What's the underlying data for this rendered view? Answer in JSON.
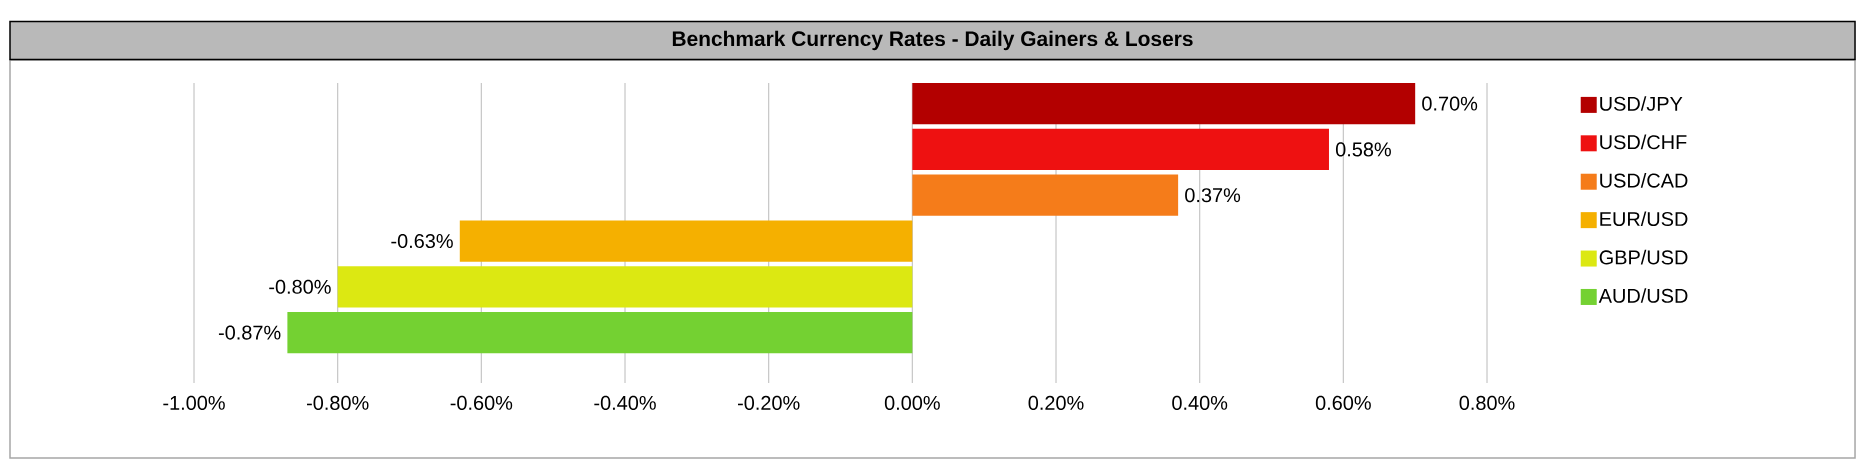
{
  "chart_data": {
    "type": "bar",
    "orientation": "horizontal",
    "title": "Benchmark Currency Rates - Daily Gainers & Losers",
    "categories": [
      null,
      null,
      null,
      null,
      null,
      null
    ],
    "series": [
      {
        "name": "USD/JPY",
        "color": "#b30000",
        "values": [
          0.7,
          null,
          null,
          null,
          null,
          null
        ],
        "value_labels": [
          "0.70%",
          null,
          null,
          null,
          null,
          null
        ]
      },
      {
        "name": "USD/CHF",
        "color": "#ee1111",
        "values": [
          null,
          0.58,
          null,
          null,
          null,
          null
        ],
        "value_labels": [
          null,
          "0.58%",
          null,
          null,
          null,
          null
        ]
      },
      {
        "name": "USD/CAD",
        "color": "#f57c1a",
        "values": [
          null,
          null,
          0.37,
          null,
          null,
          null
        ],
        "value_labels": [
          null,
          null,
          "0.37%",
          null,
          null,
          null
        ]
      },
      {
        "name": "EUR/USD",
        "color": "#f5b000",
        "values": [
          null,
          null,
          null,
          -0.63,
          null,
          null
        ],
        "value_labels": [
          null,
          null,
          null,
          "-0.63%",
          null,
          null
        ]
      },
      {
        "name": "GBP/USD",
        "color": "#dce812",
        "values": [
          null,
          null,
          null,
          null,
          -0.8,
          null
        ],
        "value_labels": [
          null,
          null,
          null,
          null,
          "-0.80%",
          null
        ]
      },
      {
        "name": "AUD/USD",
        "color": "#74d132",
        "values": [
          null,
          null,
          null,
          null,
          null,
          -0.87
        ],
        "value_labels": [
          null,
          null,
          null,
          null,
          null,
          "-0.87%"
        ]
      }
    ],
    "xlim": [
      -1.0,
      0.8
    ],
    "xticks": [
      {
        "value": -1.0,
        "label": "-1.00%"
      },
      {
        "value": -0.8,
        "label": "-0.80%"
      },
      {
        "value": -0.6,
        "label": "-0.60%"
      },
      {
        "value": -0.4,
        "label": "-0.40%"
      },
      {
        "value": -0.2,
        "label": "-0.20%"
      },
      {
        "value": 0.0,
        "label": "0.00%"
      },
      {
        "value": 0.2,
        "label": "0.20%"
      },
      {
        "value": 0.4,
        "label": "0.40%"
      },
      {
        "value": 0.6,
        "label": "0.60%"
      },
      {
        "value": 0.8,
        "label": "0.80%"
      }
    ],
    "grid": "x",
    "legend": "right"
  }
}
